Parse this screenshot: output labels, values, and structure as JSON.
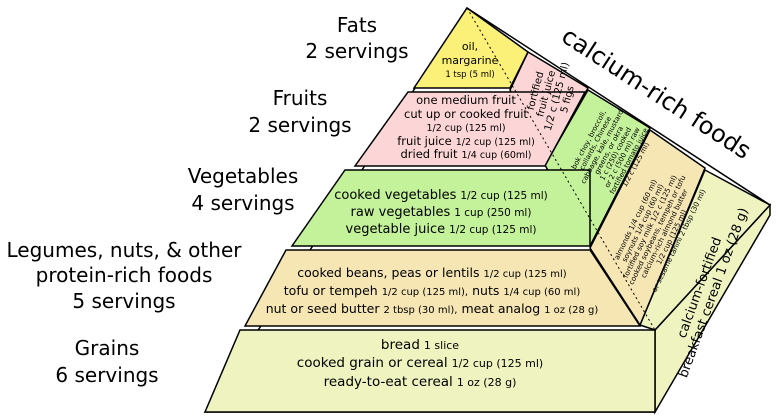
{
  "title": "calcium-rich foods",
  "groups": [
    {
      "name": "Fats",
      "servings": "2 servings",
      "lines": [
        [
          {
            "food": "oil,"
          }
        ],
        [
          {
            "food": "margarine"
          }
        ],
        [
          {
            "amount": "1 tsp (5 ml)"
          }
        ]
      ]
    },
    {
      "name": "Fruits",
      "servings": "2 servings",
      "lines": [
        [
          {
            "food": "one medium fruit"
          }
        ],
        [
          {
            "food": "cut up or cooked fruit"
          }
        ],
        [
          {
            "amount": "1/2 cup (125 ml)"
          }
        ],
        [
          {
            "food": "fruit juice"
          },
          {
            "amount": "1/2 cup (125 ml)"
          }
        ],
        [
          {
            "food": "dried fruit"
          },
          {
            "amount": "1/4 cup (60ml)"
          }
        ]
      ]
    },
    {
      "name": "Vegetables",
      "servings": "4 servings",
      "lines": [
        [
          {
            "food": "cooked vegetables"
          },
          {
            "amount": "1/2 cup (125 ml)"
          }
        ],
        [
          {
            "food": "raw vegetables"
          },
          {
            "amount": "1 cup (250 ml)"
          }
        ],
        [
          {
            "food": "vegetable juice"
          },
          {
            "amount": "1/2 cup (125 ml)"
          }
        ]
      ]
    },
    {
      "name": [
        "Legumes, nuts, & other",
        "protein-rich foods"
      ],
      "servings": "5 servings",
      "lines": [
        [
          {
            "food": "cooked beans, peas or lentils"
          },
          {
            "amount": "1/2 cup (125 ml)"
          }
        ],
        [
          {
            "food": "tofu or tempeh"
          },
          {
            "amount": "1/2 cup (125 ml),"
          },
          {
            "food": "nuts"
          },
          {
            "amount": "1/4 cup (60 ml)"
          }
        ],
        [
          {
            "food": "nut or seed butter"
          },
          {
            "amount": "2 tbsp (30 ml),"
          },
          {
            "food": "meat analog"
          },
          {
            "amount": "1 oz (28 g)"
          }
        ]
      ]
    },
    {
      "name": "Grains",
      "servings": "6 servings",
      "lines": [
        [
          {
            "food": "bread"
          },
          {
            "amount": "1 slice"
          }
        ],
        [
          {
            "food": "cooked grain or cereal"
          },
          {
            "amount": "1/2 cup (125 ml)"
          }
        ],
        [
          {
            "food": "ready-to-eat cereal"
          },
          {
            "amount": "1 oz (28 g)"
          }
        ]
      ]
    }
  ],
  "calcium": [
    [
      "fortified",
      "fruit juice",
      "1/2 c (125 ml)",
      "5 figs"
    ],
    [
      "bok choy, broccoli,",
      "collards, Chinese",
      "cabbage, kale, mustard",
      "greens, or okra",
      "1 c (250) cooked",
      "or 2 c (500 ml) raw",
      "fortified tomato juice",
      "1/2 c (125 ml)"
    ],
    [
      "almonds 1/4 cup (60 ml)",
      "soynuts 1/4 cup (60 ml)",
      "fortified soy milk 1/2 c (125 ml)",
      "cooked soybeans, tempeh or tofu",
      "calcium-rich almond butter",
      "1/2 cup (125 ml)",
      "or sesame tahini 2 tbsp (30 ml)"
    ],
    [
      "calcium-fortified",
      "breakfast cereal 1 oz (28 g)"
    ]
  ]
}
